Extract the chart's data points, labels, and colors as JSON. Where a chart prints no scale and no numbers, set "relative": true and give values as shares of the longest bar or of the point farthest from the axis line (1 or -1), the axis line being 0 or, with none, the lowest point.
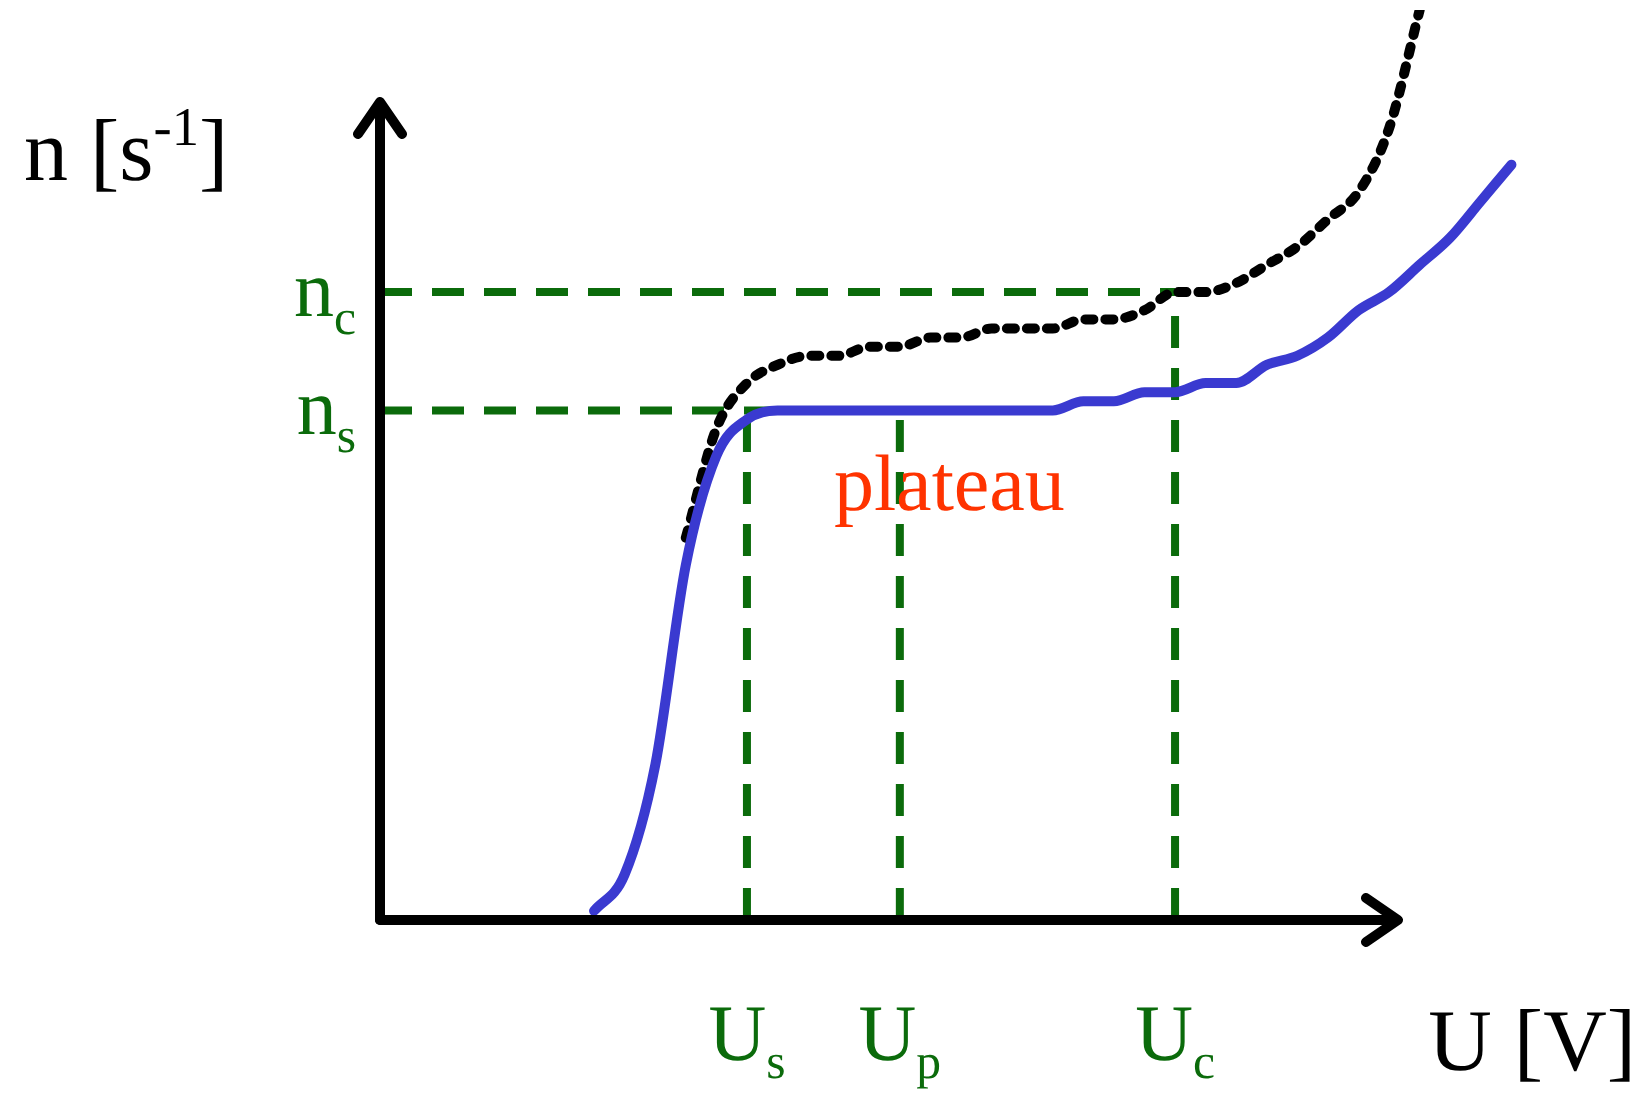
{
  "chart_data": {
    "type": "line",
    "relative": true,
    "marker": "none",
    "xlabel": "U [V]",
    "ylabel": "n [s$^{-1}$]",
    "categories": [
      null,
      null,
      null,
      null,
      null,
      null,
      null,
      null,
      null,
      null,
      null,
      null,
      "U$_{s}$",
      null,
      null,
      null,
      null,
      "U$_{p}$",
      null,
      null,
      null,
      null,
      null,
      null,
      null,
      null,
      "U$_{c}$",
      null,
      null,
      null,
      null,
      null,
      null,
      null,
      null,
      null,
      null,
      null,
      null
    ],
    "series": [
      {
        "color": "#3a3ad0",
        "line_style": "solid",
        "values": [
          null,
          null,
          null,
          null,
          null,
          null,
          null,
          0.01,
          0.05,
          0.17,
          0.39,
          0.51,
          0.55,
          0.56,
          0.56,
          0.56,
          0.56,
          0.56,
          0.56,
          0.56,
          0.56,
          0.56,
          0.56,
          0.57,
          0.57,
          0.58,
          0.58,
          0.59,
          0.59,
          0.61,
          0.62,
          0.64,
          0.67,
          0.69,
          0.72,
          0.75,
          0.79,
          0.83,
          null
        ]
      },
      {
        "color": "#000000",
        "line_style": "dotted",
        "values": [
          null,
          null,
          null,
          null,
          null,
          null,
          null,
          null,
          null,
          null,
          0.42,
          0.54,
          0.59,
          0.61,
          0.62,
          0.62,
          0.63,
          0.63,
          0.64,
          0.64,
          0.65,
          0.65,
          0.65,
          0.66,
          0.66,
          0.67,
          0.69,
          0.69,
          0.7,
          0.72,
          0.74,
          0.77,
          0.8,
          0.87,
          1.0,
          null,
          null,
          null,
          null
        ]
      }
    ],
    "ref_lines": [
      {
        "axis": "y",
        "value": 0.69,
        "label": "n$_{c}$",
        "color": "#0b6b0b",
        "line_style": "dashed"
      },
      {
        "axis": "y",
        "value": 0.56,
        "label": "n$_{s}$",
        "color": "#0b6b0b",
        "line_style": "dashed"
      },
      {
        "axis": "x",
        "value": "U$_{s}$",
        "color": "#0b6b0b",
        "line_style": "dashed"
      },
      {
        "axis": "x",
        "value": "U$_{p}$",
        "color": "#0b6b0b",
        "line_style": "dashed"
      },
      {
        "axis": "x",
        "value": "U$_{c}$",
        "color": "#0b6b0b",
        "line_style": "dashed"
      }
    ],
    "annotations": [
      "plateau"
    ]
  }
}
